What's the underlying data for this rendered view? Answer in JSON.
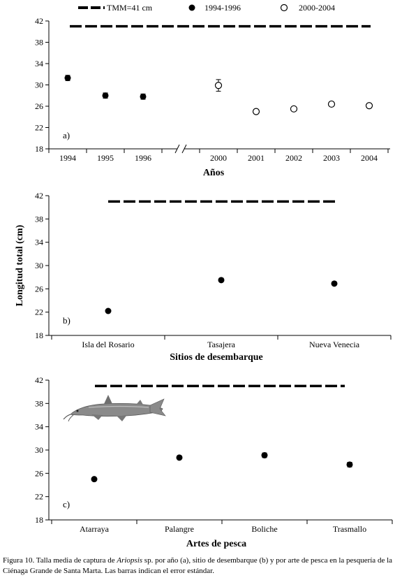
{
  "legend": {
    "items": [
      {
        "label": "TMM=41 cm",
        "symbol": "dash"
      },
      {
        "label": "1994-1996",
        "symbol": "filled-circle"
      },
      {
        "label": "2000-2004",
        "symbol": "open-circle"
      }
    ]
  },
  "chart_data": [
    {
      "type": "scatter",
      "panel_label": "a)",
      "xlabel": "Años",
      "ylabel": "",
      "ylim": [
        18,
        42
      ],
      "yticks": [
        18,
        22,
        26,
        30,
        34,
        38,
        42
      ],
      "axis_break_after": "1996",
      "categories": [
        "1994",
        "1995",
        "1996",
        "2000",
        "2001",
        "2002",
        "2003",
        "2004"
      ],
      "reference_line": {
        "name": "TMM=41 cm",
        "value": 41
      },
      "series": [
        {
          "name": "1994-1996",
          "marker": "filled",
          "x": [
            "1994",
            "1995",
            "1996"
          ],
          "values": [
            31.3,
            28.0,
            27.8
          ],
          "error": [
            0.5,
            0.5,
            0.5
          ]
        },
        {
          "name": "2000-2004",
          "marker": "open",
          "x": [
            "2000",
            "2001",
            "2002",
            "2003",
            "2004"
          ],
          "values": [
            29.9,
            25.0,
            25.5,
            26.4,
            26.1
          ],
          "error": [
            1.1,
            0.2,
            0.2,
            0.3,
            0.4
          ]
        }
      ]
    },
    {
      "type": "scatter",
      "panel_label": "b)",
      "xlabel": "Sitios de desembarque",
      "ylabel": "Longitud total (cm)",
      "ylim": [
        18,
        42
      ],
      "yticks": [
        18,
        22,
        26,
        30,
        34,
        38,
        42
      ],
      "categories": [
        "Isla del Rosario",
        "Tasajera",
        "Nueva Venecia"
      ],
      "reference_line": {
        "name": "TMM=41 cm",
        "value": 41
      },
      "series": [
        {
          "name": "",
          "marker": "filled",
          "x": [
            "Isla del Rosario",
            "Tasajera",
            "Nueva Venecia"
          ],
          "values": [
            22.2,
            27.5,
            26.9
          ],
          "error": [
            0.2,
            0.2,
            0.2
          ]
        }
      ]
    },
    {
      "type": "scatter",
      "panel_label": "c)",
      "xlabel": "Artes de pesca",
      "ylabel": "",
      "ylim": [
        18,
        42
      ],
      "yticks": [
        18,
        22,
        26,
        30,
        34,
        38,
        42
      ],
      "categories": [
        "Atarraya",
        "Palangre",
        "Boliche",
        "Trasmallo"
      ],
      "reference_line": {
        "name": "TMM=41 cm",
        "value": 41
      },
      "series": [
        {
          "name": "",
          "marker": "filled",
          "x": [
            "Atarraya",
            "Palangre",
            "Boliche",
            "Trasmallo"
          ],
          "values": [
            25.0,
            28.7,
            29.1,
            27.5
          ],
          "error": [
            0.2,
            0.2,
            0.4,
            0.4
          ]
        }
      ]
    }
  ],
  "caption": {
    "prefix": "Figura 10. Talla media de captura de ",
    "species": "Ariopsis",
    "suffix": " sp. por año (a), sitio de desembarque (b) y por arte de pesca en la pesquería de la Ciénaga Grande de Santa Marta. Las barras indican el error estándar."
  },
  "colors": {
    "marker": "#000000",
    "axis": "#000000",
    "fish": "#8a8a8a"
  }
}
